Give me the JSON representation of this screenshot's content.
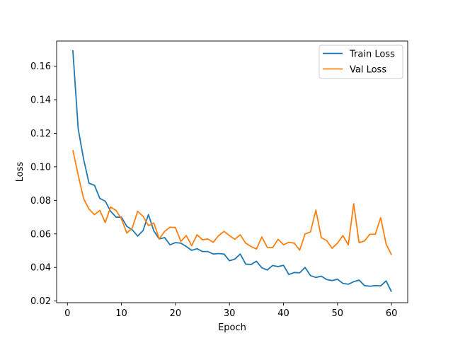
{
  "chart_data": {
    "type": "line",
    "xlabel": "Epoch",
    "ylabel": "Loss",
    "xlim": [
      -2,
      63
    ],
    "ylim": [
      0.019,
      0.175
    ],
    "xticks": [
      0,
      10,
      20,
      30,
      40,
      50,
      60
    ],
    "yticks": [
      0.02,
      0.04,
      0.06,
      0.08,
      0.1,
      0.12,
      0.14,
      0.16
    ],
    "ytick_labels": [
      "0.02",
      "0.04",
      "0.06",
      "0.08",
      "0.10",
      "0.12",
      "0.14",
      "0.16"
    ],
    "legend_position": "top-right",
    "grid": false,
    "x": [
      1,
      2,
      3,
      4,
      5,
      6,
      7,
      8,
      9,
      10,
      11,
      12,
      13,
      14,
      15,
      16,
      17,
      18,
      19,
      20,
      21,
      22,
      23,
      24,
      25,
      26,
      27,
      28,
      29,
      30,
      31,
      32,
      33,
      34,
      35,
      36,
      37,
      38,
      39,
      40,
      41,
      42,
      43,
      44,
      45,
      46,
      47,
      48,
      49,
      50,
      51,
      52,
      53,
      54,
      55,
      56,
      57,
      58,
      59,
      60
    ],
    "series": [
      {
        "name": "Train Loss",
        "color": "#1f77b4",
        "values": [
          0.1695,
          0.1225,
          0.1045,
          0.0902,
          0.089,
          0.0812,
          0.0795,
          0.0735,
          0.07,
          0.07,
          0.0645,
          0.0625,
          0.0587,
          0.062,
          0.0715,
          0.0618,
          0.057,
          0.0578,
          0.0535,
          0.0548,
          0.0545,
          0.0525,
          0.0502,
          0.0512,
          0.0495,
          0.0495,
          0.048,
          0.0483,
          0.048,
          0.044,
          0.045,
          0.048,
          0.042,
          0.0418,
          0.0437,
          0.0398,
          0.0385,
          0.0412,
          0.0405,
          0.0413,
          0.0358,
          0.037,
          0.0368,
          0.04,
          0.0352,
          0.034,
          0.0348,
          0.0328,
          0.0322,
          0.033,
          0.0305,
          0.03,
          0.0315,
          0.0325,
          0.0292,
          0.0288,
          0.0292,
          0.029,
          0.032,
          0.0255
        ]
      },
      {
        "name": "Val Loss",
        "color": "#ff7f0e",
        "values": [
          0.11,
          0.095,
          0.081,
          0.0748,
          0.0715,
          0.074,
          0.0668,
          0.076,
          0.074,
          0.069,
          0.0605,
          0.0635,
          0.0735,
          0.0705,
          0.065,
          0.0665,
          0.057,
          0.0615,
          0.064,
          0.0638,
          0.0555,
          0.059,
          0.053,
          0.0595,
          0.0565,
          0.057,
          0.055,
          0.059,
          0.0615,
          0.059,
          0.0568,
          0.0595,
          0.0545,
          0.0525,
          0.051,
          0.0582,
          0.052,
          0.0518,
          0.0568,
          0.0535,
          0.055,
          0.0545,
          0.0503,
          0.06,
          0.0612,
          0.0742,
          0.0578,
          0.056,
          0.0515,
          0.0545,
          0.059,
          0.0535,
          0.078,
          0.0548,
          0.0558,
          0.0598,
          0.0598,
          0.0697,
          0.054,
          0.0475
        ]
      }
    ]
  }
}
